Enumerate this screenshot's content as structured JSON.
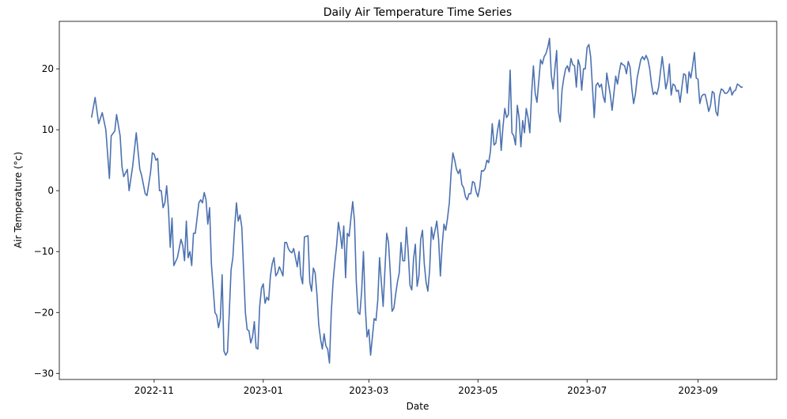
{
  "chart_data": {
    "type": "line",
    "title": "Daily Air Temperature Time Series",
    "x_label": "Date",
    "y_label": "Air Temperature (°c)",
    "x": [
      -4,
      -2,
      0,
      2,
      4,
      6,
      7,
      9,
      10,
      12,
      13,
      14,
      16,
      17,
      19,
      21,
      23,
      24,
      26,
      27,
      29,
      30,
      31,
      32,
      33,
      34,
      35,
      36,
      37,
      38,
      39,
      40,
      41,
      42,
      44,
      46,
      47,
      48,
      49,
      50,
      51,
      52,
      53,
      54,
      56,
      57,
      58,
      59,
      60,
      61,
      62,
      63,
      65,
      66,
      67,
      68,
      69,
      70,
      71,
      72,
      73,
      74,
      75,
      76,
      77,
      78,
      79,
      80,
      81,
      82,
      83,
      84,
      85,
      86,
      87,
      88,
      89,
      90,
      91,
      92,
      93,
      94,
      95,
      96,
      97,
      98,
      99,
      100,
      101,
      102,
      103,
      104,
      105,
      106,
      107,
      108,
      109,
      110,
      111,
      112,
      113,
      114,
      115,
      116,
      117,
      118,
      119,
      120,
      121,
      122,
      123,
      124,
      125,
      126,
      127,
      128,
      129,
      130,
      131,
      132,
      133,
      134,
      135,
      136,
      137,
      138,
      139,
      140,
      141,
      142,
      143,
      144,
      145,
      146,
      147,
      148,
      149,
      150,
      151,
      152,
      153,
      154,
      155,
      156,
      157,
      158,
      159,
      160,
      161,
      162,
      163,
      164,
      165,
      166,
      167,
      168,
      169,
      170,
      171,
      172,
      173,
      174,
      175,
      176,
      177,
      178,
      179,
      180,
      181,
      182,
      183,
      184,
      185,
      186,
      187,
      188,
      189,
      190,
      191,
      192,
      193,
      194,
      195,
      196,
      197,
      198,
      199,
      200,
      201,
      202,
      203,
      204,
      205,
      206,
      207,
      208,
      209,
      210,
      211,
      212,
      213,
      214,
      215,
      216,
      217,
      218,
      219,
      220,
      221,
      222,
      223,
      224,
      225,
      226,
      227,
      228,
      229,
      230,
      231,
      232,
      233,
      234,
      235,
      236,
      237,
      238,
      239,
      240,
      241,
      242,
      243,
      244,
      245,
      246,
      247,
      248,
      249,
      250,
      251,
      252,
      253,
      254,
      255,
      256,
      257,
      258,
      259,
      260,
      261,
      262,
      263,
      264,
      265,
      266,
      267,
      268,
      269,
      270,
      271,
      272,
      273,
      274,
      275,
      276,
      277,
      278,
      279,
      280,
      281,
      282,
      283,
      284,
      285,
      286,
      287,
      288,
      289,
      290,
      291,
      292,
      293,
      294,
      295,
      296,
      297,
      298,
      299,
      300,
      301,
      302,
      303,
      304,
      305,
      306,
      307,
      308,
      309,
      310,
      311,
      312,
      313,
      314,
      315,
      316,
      317,
      318,
      319,
      320,
      321,
      322,
      323,
      324,
      325,
      326,
      327,
      328,
      329,
      330,
      331,
      332,
      333,
      334,
      335,
      336,
      337,
      338,
      339,
      340,
      341,
      342,
      343,
      344,
      345,
      346,
      347,
      348,
      349,
      350,
      351,
      352,
      353,
      354,
      355,
      356,
      357,
      358,
      359,
      360
    ],
    "values": [
      12,
      15.3,
      11,
      12.8,
      10,
      2,
      9,
      9.8,
      12.5,
      9,
      4,
      2.3,
      3.5,
      0,
      4,
      9.5,
      3.5,
      2.5,
      -0.5,
      -0.8,
      3,
      6.2,
      6,
      5,
      5.3,
      0,
      0,
      -2.8,
      -2,
      0.8,
      -3,
      -9.3,
      -4.5,
      -12.3,
      -11,
      -8,
      -9,
      -11.5,
      -5,
      -11,
      -10,
      -12.3,
      -7,
      -7,
      -2,
      -1.5,
      -2,
      -0.3,
      -1.5,
      -5.5,
      -2.8,
      -12,
      -20,
      -20.5,
      -22.5,
      -21,
      -13.8,
      -26.3,
      -27,
      -26.5,
      -20,
      -13,
      -11,
      -6,
      -2,
      -5,
      -4,
      -6,
      -13,
      -20,
      -22.8,
      -23,
      -25,
      -24,
      -21.5,
      -25.8,
      -26,
      -19,
      -16,
      -15.3,
      -18.5,
      -17.5,
      -18,
      -14,
      -12,
      -11,
      -14,
      -13.5,
      -12.5,
      -13.2,
      -14,
      -8.5,
      -8.5,
      -9.5,
      -10,
      -10.2,
      -9.5,
      -11,
      -12.5,
      -10,
      -14,
      -15.3,
      -7.6,
      -7.5,
      -7.4,
      -15,
      -16.5,
      -12.7,
      -13.5,
      -17,
      -22,
      -24.3,
      -26,
      -23.5,
      -25.5,
      -26,
      -28.3,
      -20,
      -15,
      -11.8,
      -9,
      -5.2,
      -7,
      -9.5,
      -5.8,
      -14.3,
      -7,
      -7.5,
      -4.5,
      -1.8,
      -5,
      -15,
      -20,
      -20.3,
      -16.5,
      -10,
      -19,
      -24,
      -22.8,
      -27,
      -24,
      -21,
      -21.3,
      -18,
      -11,
      -15,
      -19,
      -13,
      -7,
      -8.5,
      -13.5,
      -19.8,
      -19.3,
      -17,
      -15,
      -13.5,
      -8.5,
      -11.5,
      -11.5,
      -6,
      -10,
      -15.5,
      -16.3,
      -11.2,
      -8.8,
      -15.7,
      -14,
      -8,
      -6.5,
      -12,
      -15,
      -16.5,
      -13,
      -6,
      -8,
      -6.5,
      -5,
      -8,
      -14,
      -9,
      -5.5,
      -6.5,
      -4.5,
      -2,
      3,
      6.2,
      5,
      3.5,
      2.8,
      3.5,
      1,
      0.5,
      -1,
      -1.5,
      -0.5,
      -0.5,
      1.5,
      1.3,
      -0.2,
      -1,
      0.5,
      3.3,
      3.2,
      3.6,
      5,
      4.6,
      6.5,
      11,
      7.5,
      7.8,
      10,
      11.6,
      6.6,
      10.5,
      13.5,
      12,
      12.5,
      19.8,
      9.5,
      9,
      7.5,
      14,
      12,
      7.2,
      11.5,
      9.5,
      13.5,
      12,
      9.5,
      16,
      20.5,
      16,
      14.5,
      18,
      21.5,
      20.8,
      22,
      22.5,
      23.5,
      25,
      19,
      16.7,
      20,
      23,
      13,
      11.3,
      16.5,
      18.5,
      20,
      20.5,
      19.5,
      21.7,
      20.7,
      20.5,
      17,
      21.5,
      20.5,
      16.5,
      20,
      20,
      23.5,
      24,
      22,
      17,
      12,
      17.3,
      17.7,
      17,
      17.5,
      15.5,
      14.5,
      19.3,
      17.5,
      15.7,
      13.2,
      16,
      18.8,
      17.5,
      19.5,
      21,
      20.7,
      20.5,
      19.2,
      21.2,
      20.3,
      16.8,
      14.3,
      15.8,
      18.5,
      20,
      21.5,
      22,
      21.5,
      22.2,
      21.5,
      20,
      17.5,
      15.8,
      16.2,
      15.8,
      17,
      19.5,
      22,
      19.5,
      16.7,
      18,
      20.8,
      15.7,
      17.5,
      17.3,
      16.3,
      16.5,
      14.5,
      17,
      19.2,
      19,
      16,
      19.5,
      18.5,
      20.5,
      22.7,
      18.5,
      18.3,
      14.3,
      15.5,
      15.8,
      15.8,
      14.5,
      13,
      14,
      16.3,
      16,
      13,
      12.3,
      15.5,
      16.7,
      16.5,
      16,
      16,
      16.3,
      17,
      15.7,
      16.3,
      16.5,
      17.5,
      17.3,
      17,
      17
    ],
    "color": "#4c72b0",
    "xlim": [
      -22,
      379
    ],
    "xticks": [
      {
        "value": 31,
        "label": "2022-11"
      },
      {
        "value": 92,
        "label": "2023-01"
      },
      {
        "value": 151,
        "label": "2023-03"
      },
      {
        "value": 212,
        "label": "2023-05"
      },
      {
        "value": 273,
        "label": "2023-07"
      },
      {
        "value": 335,
        "label": "2023-09"
      }
    ],
    "ylim": [
      -31,
      27.8
    ],
    "yticks": [
      {
        "value": -30,
        "label": "−30"
      },
      {
        "value": -20,
        "label": "−20"
      },
      {
        "value": -10,
        "label": "−10"
      },
      0,
      10,
      20
    ],
    "grid": false
  }
}
